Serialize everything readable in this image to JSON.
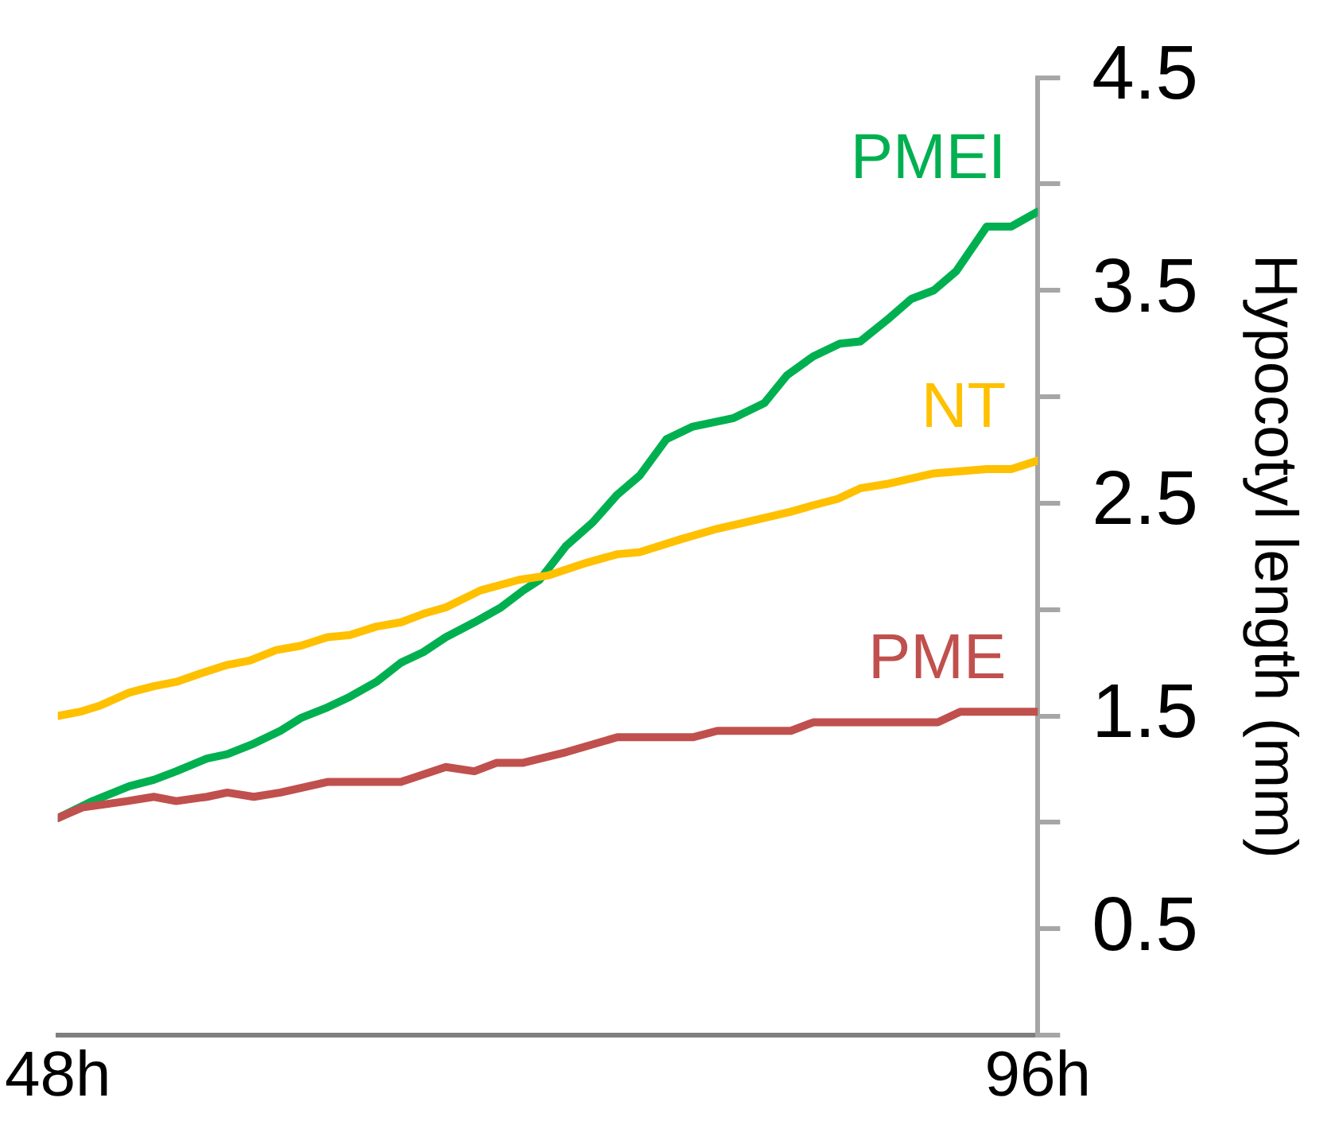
{
  "chart_data": {
    "type": "line",
    "ylabel": "Hypocotyl length (mm)",
    "xlim": [
      48,
      96
    ],
    "xticks": [
      {
        "value": 48,
        "label": "48h"
      },
      {
        "value": 96,
        "label": "96h"
      }
    ],
    "ylim": [
      0,
      4.5
    ],
    "yticks": [
      {
        "value": 0,
        "label": null
      },
      0.5,
      {
        "value": 1,
        "label": null
      },
      1.5,
      {
        "value": 2,
        "label": null
      },
      2.5,
      {
        "value": 3,
        "label": null
      },
      3.5,
      {
        "value": 4,
        "label": null
      },
      4.5
    ],
    "grid": false,
    "legend": false,
    "marker": "none",
    "line_style": "solid",
    "series": [
      {
        "name": "PMEI",
        "color": "#00b050",
        "x": [
          48,
          49.7,
          51.5,
          52.7,
          53.8,
          55.3,
          56.3,
          57.6,
          58.9,
          59.9,
          61.2,
          62.3,
          63.6,
          64.8,
          65.9,
          67.0,
          68.4,
          69.7,
          70.8,
          71.6,
          72.9,
          74.2,
          75.4,
          76.5,
          77.8,
          79.1,
          81.1,
          82.6,
          83.7,
          85.0,
          86.3,
          87.3,
          88.6,
          89.8,
          90.9,
          92.0,
          93.5,
          94.7,
          96
        ],
        "values": [
          1.02,
          1.1,
          1.17,
          1.2,
          1.24,
          1.3,
          1.32,
          1.37,
          1.43,
          1.49,
          1.54,
          1.59,
          1.66,
          1.75,
          1.8,
          1.87,
          1.94,
          2.01,
          2.09,
          2.14,
          2.3,
          2.41,
          2.54,
          2.63,
          2.8,
          2.86,
          2.9,
          2.97,
          3.1,
          3.19,
          3.25,
          3.26,
          3.36,
          3.46,
          3.5,
          3.59,
          3.8,
          3.8,
          3.87
        ]
      },
      {
        "name": "NT",
        "color": "#ffc000",
        "x": [
          48,
          49.1,
          50.1,
          51.5,
          52.7,
          53.8,
          55.0,
          56.3,
          57.4,
          58.7,
          59.9,
          61.2,
          62.3,
          63.6,
          64.8,
          65.9,
          67.0,
          68.7,
          70.6,
          72.0,
          73.9,
          75.4,
          76.5,
          78.5,
          80.3,
          81.7,
          83.9,
          85.0,
          86.2,
          87.3,
          88.6,
          90.9,
          92.2,
          93.5,
          94.7,
          96
        ],
        "values": [
          1.5,
          1.52,
          1.55,
          1.61,
          1.64,
          1.66,
          1.7,
          1.74,
          1.76,
          1.81,
          1.83,
          1.87,
          1.88,
          1.92,
          1.94,
          1.98,
          2.01,
          2.09,
          2.14,
          2.16,
          2.22,
          2.26,
          2.27,
          2.33,
          2.38,
          2.41,
          2.46,
          2.49,
          2.52,
          2.57,
          2.59,
          2.64,
          2.65,
          2.66,
          2.66,
          2.7
        ]
      },
      {
        "name": "PME",
        "color": "#c0504d",
        "x": [
          48,
          49.2,
          51.4,
          52.7,
          53.8,
          55.3,
          56.3,
          57.6,
          58.9,
          61.2,
          64.8,
          67.0,
          68.4,
          69.5,
          70.8,
          72.9,
          75.4,
          79.1,
          80.3,
          83.9,
          85.0,
          91.1,
          92.2,
          96
        ],
        "values": [
          1.02,
          1.07,
          1.1,
          1.12,
          1.1,
          1.12,
          1.14,
          1.12,
          1.14,
          1.19,
          1.19,
          1.26,
          1.24,
          1.28,
          1.28,
          1.33,
          1.4,
          1.4,
          1.43,
          1.43,
          1.47,
          1.47,
          1.52,
          1.52
        ]
      }
    ]
  }
}
